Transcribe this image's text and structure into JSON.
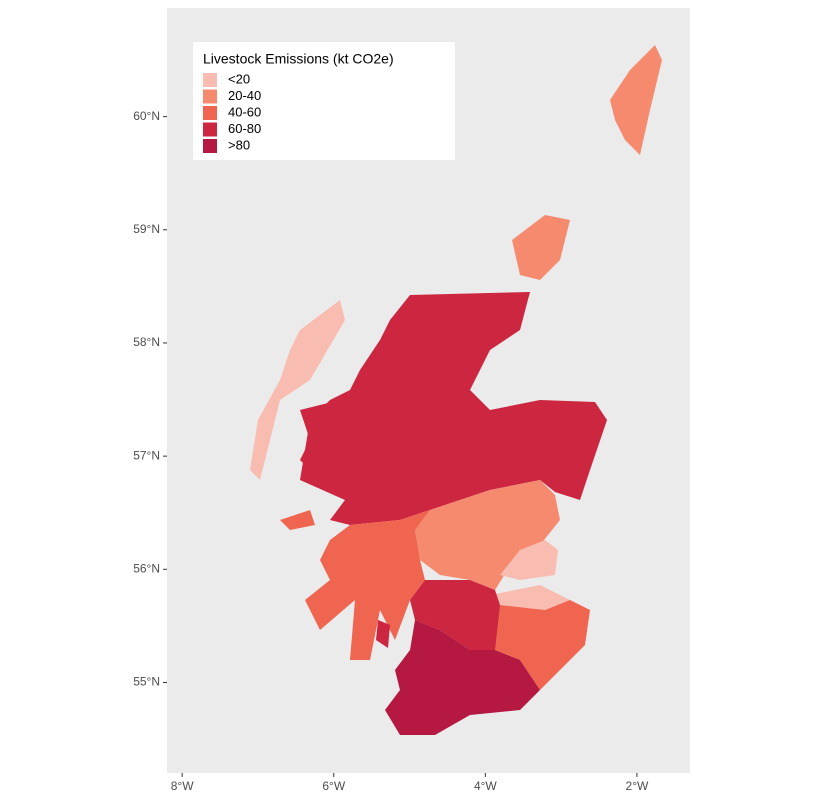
{
  "chart_data": {
    "type": "choropleth",
    "legend_title": "Livestock Emissions (kt CO2e)",
    "classes": [
      {
        "label": "<20",
        "color": "#f9bcb0"
      },
      {
        "label": "20-40",
        "color": "#f58a6e"
      },
      {
        "label": "40-60",
        "color": "#ef6550"
      },
      {
        "label": "60-80",
        "color": "#cc2640"
      },
      {
        "label": ">80",
        "color": "#b51840"
      }
    ],
    "xlim": [
      -8.2,
      -1.3
    ],
    "ylim": [
      54.2,
      60.96
    ],
    "xticks": [
      {
        "value": -8,
        "label": "8°W"
      },
      {
        "value": -6,
        "label": "6°W"
      },
      {
        "value": -4,
        "label": "4°W"
      },
      {
        "value": -2,
        "label": "2°W"
      }
    ],
    "yticks": [
      {
        "value": 55,
        "label": "55°N"
      },
      {
        "value": 56,
        "label": "56°N"
      },
      {
        "value": 57,
        "label": "57°N"
      },
      {
        "value": 58,
        "label": "58°N"
      },
      {
        "value": 59,
        "label": "59°N"
      },
      {
        "value": 60,
        "label": "60°N"
      }
    ]
  }
}
